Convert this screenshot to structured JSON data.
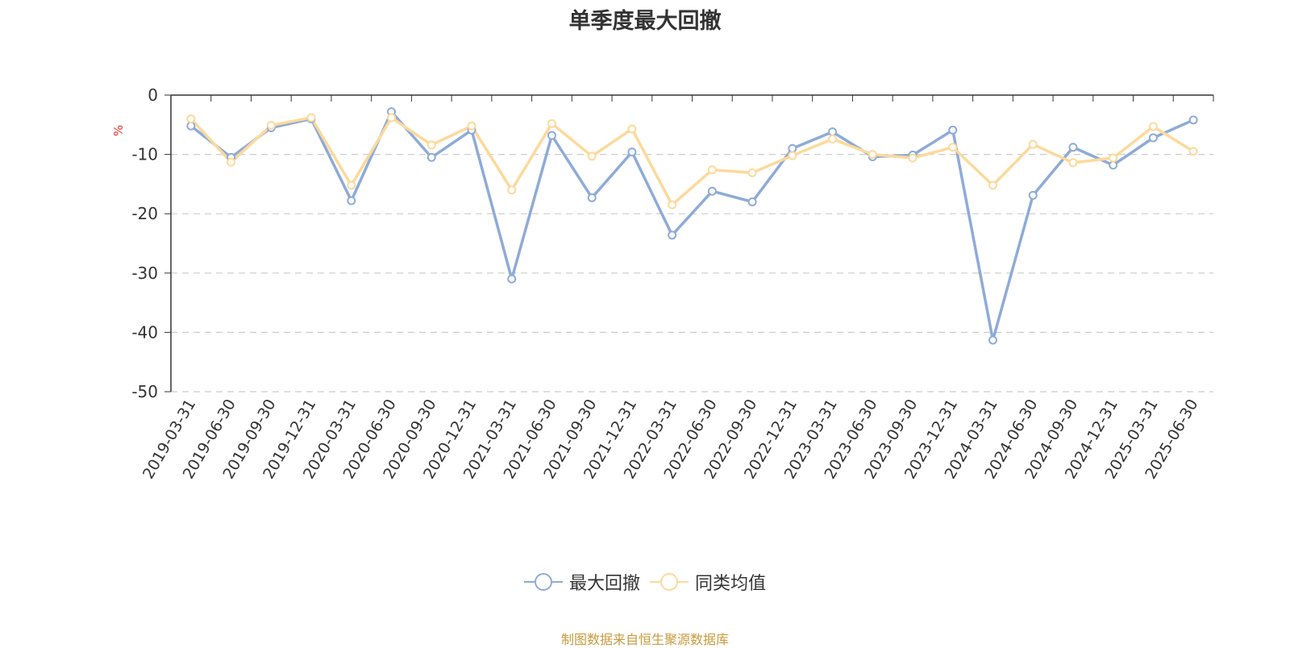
{
  "chart_data": {
    "type": "line",
    "title": "单季度最大回撤",
    "ylabel": "%",
    "xlabel": "",
    "ylim": [
      -50,
      0
    ],
    "yticks": [
      0,
      -10,
      -20,
      -30,
      -40,
      -50
    ],
    "grid": true,
    "legend_position": "bottom",
    "categories": [
      "2019-03-31",
      "2019-06-30",
      "2019-09-30",
      "2019-12-31",
      "2020-03-31",
      "2020-06-30",
      "2020-09-30",
      "2020-12-31",
      "2021-03-31",
      "2021-06-30",
      "2021-09-30",
      "2021-12-31",
      "2022-03-31",
      "2022-06-30",
      "2022-09-30",
      "2022-12-31",
      "2023-03-31",
      "2023-06-30",
      "2023-09-30",
      "2023-12-31",
      "2024-03-31",
      "2024-06-30",
      "2024-09-30",
      "2024-12-31",
      "2025-03-31",
      "2025-06-30"
    ],
    "series": [
      {
        "name": "最大回撤",
        "color": "#8eabd8",
        "values": [
          -5.2,
          -10.5,
          -5.5,
          -4.0,
          -17.8,
          -2.8,
          -10.5,
          -5.9,
          -31.0,
          -6.8,
          -17.3,
          -9.6,
          -23.6,
          -16.2,
          -18.0,
          -9.0,
          -6.2,
          -10.4,
          -10.1,
          -5.9,
          -41.3,
          -16.9,
          -8.8,
          -11.8,
          -7.2,
          -4.2
        ]
      },
      {
        "name": "同类均值",
        "color": "#fdd99b",
        "values": [
          -4.0,
          -11.3,
          -5.1,
          -3.8,
          -15.2,
          -3.8,
          -8.4,
          -5.2,
          -16.0,
          -4.8,
          -10.3,
          -5.7,
          -18.5,
          -12.6,
          -13.1,
          -10.2,
          -7.4,
          -10.0,
          -10.6,
          -8.8,
          -15.2,
          -8.3,
          -11.4,
          -10.6,
          -5.3,
          -9.5
        ]
      }
    ],
    "source_note": "制图数据来自恒生聚源数据库"
  }
}
